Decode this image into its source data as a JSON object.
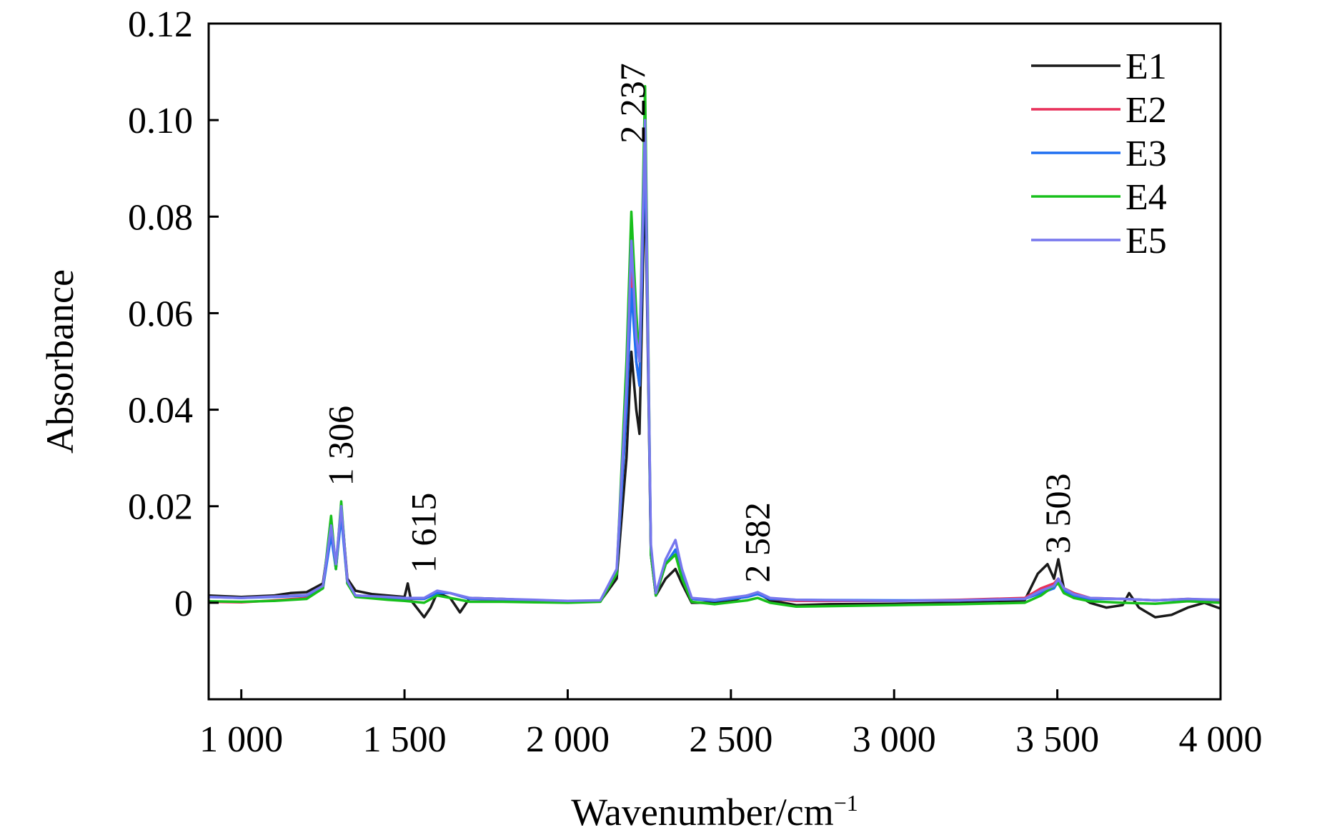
{
  "chart_data": {
    "type": "line",
    "xlabel": "Wavenumber/cm",
    "xlabel_sup": "−1",
    "ylabel": "Absorbance",
    "xlim": [
      900,
      4000
    ],
    "ylim": [
      -0.02,
      0.12
    ],
    "x_ticks": [
      1000,
      1500,
      2000,
      2500,
      3000,
      3500,
      4000
    ],
    "x_tick_labels": [
      "1 000",
      "1 500",
      "2 000",
      "2 500",
      "3 000",
      "3 500",
      "4 000"
    ],
    "y_ticks": [
      0,
      0.02,
      0.04,
      0.06,
      0.08,
      0.1,
      0.12
    ],
    "y_tick_labels": [
      "0",
      "0.02",
      "0.04",
      "0.06",
      "0.08",
      "0.10",
      "0.12"
    ],
    "grid": false,
    "legend_position": "top-right",
    "annotations": [
      {
        "text": "1 306",
        "x": 1306,
        "y": 0.023
      },
      {
        "text": "1 615",
        "x": 1560,
        "y": 0.005
      },
      {
        "text": "2 237",
        "x": 2200,
        "y": 0.094
      },
      {
        "text": "2 582",
        "x": 2582,
        "y": 0.003
      },
      {
        "text": "3 503",
        "x": 3503,
        "y": 0.009
      }
    ],
    "series": [
      {
        "name": "E1",
        "color": "#1a1a1a",
        "points": [
          [
            900,
            0.0015
          ],
          [
            1000,
            0.0012
          ],
          [
            1100,
            0.0015
          ],
          [
            1150,
            0.002
          ],
          [
            1200,
            0.0022
          ],
          [
            1250,
            0.004
          ],
          [
            1275,
            0.016
          ],
          [
            1290,
            0.007
          ],
          [
            1306,
            0.02
          ],
          [
            1325,
            0.005
          ],
          [
            1350,
            0.0025
          ],
          [
            1400,
            0.0018
          ],
          [
            1450,
            0.0015
          ],
          [
            1500,
            0.0012
          ],
          [
            1510,
            0.004
          ],
          [
            1520,
            0.0005
          ],
          [
            1560,
            -0.003
          ],
          [
            1580,
            -0.001
          ],
          [
            1600,
            0.002
          ],
          [
            1640,
            0.001
          ],
          [
            1670,
            -0.002
          ],
          [
            1700,
            0.001
          ],
          [
            1800,
            0.0008
          ],
          [
            1900,
            0.0005
          ],
          [
            2000,
            0.0002
          ],
          [
            2100,
            0.0003
          ],
          [
            2150,
            0.005
          ],
          [
            2180,
            0.03
          ],
          [
            2195,
            0.052
          ],
          [
            2210,
            0.04
          ],
          [
            2220,
            0.035
          ],
          [
            2237,
            0.09
          ],
          [
            2255,
            0.01
          ],
          [
            2270,
            0.0015
          ],
          [
            2300,
            0.005
          ],
          [
            2330,
            0.007
          ],
          [
            2350,
            0.004
          ],
          [
            2380,
            0.0
          ],
          [
            2450,
            0.0
          ],
          [
            2500,
            0.0003
          ],
          [
            2550,
            0.0015
          ],
          [
            2582,
            0.002
          ],
          [
            2620,
            0.0005
          ],
          [
            2700,
            -0.0005
          ],
          [
            2800,
            -0.0003
          ],
          [
            3000,
            -0.0002
          ],
          [
            3200,
            0.0
          ],
          [
            3400,
            0.0005
          ],
          [
            3440,
            0.006
          ],
          [
            3470,
            0.008
          ],
          [
            3490,
            0.005
          ],
          [
            3503,
            0.009
          ],
          [
            3520,
            0.003
          ],
          [
            3550,
            0.002
          ],
          [
            3600,
            0.0
          ],
          [
            3650,
            -0.001
          ],
          [
            3700,
            -0.0005
          ],
          [
            3720,
            0.002
          ],
          [
            3750,
            -0.001
          ],
          [
            3800,
            -0.003
          ],
          [
            3850,
            -0.0025
          ],
          [
            3900,
            -0.001
          ],
          [
            3950,
            0.0
          ],
          [
            4000,
            -0.0012
          ]
        ]
      },
      {
        "name": "E2",
        "color": "#e8305a",
        "points": [
          [
            900,
            0.0002
          ],
          [
            1000,
            0.0001
          ],
          [
            1100,
            0.0005
          ],
          [
            1200,
            0.001
          ],
          [
            1250,
            0.003
          ],
          [
            1275,
            0.015
          ],
          [
            1290,
            0.007
          ],
          [
            1306,
            0.019
          ],
          [
            1325,
            0.004
          ],
          [
            1350,
            0.0015
          ],
          [
            1450,
            0.001
          ],
          [
            1500,
            0.0008
          ],
          [
            1560,
            0.0008
          ],
          [
            1600,
            0.002
          ],
          [
            1640,
            0.002
          ],
          [
            1700,
            0.0008
          ],
          [
            1800,
            0.0005
          ],
          [
            1900,
            0.0004
          ],
          [
            2000,
            0.0002
          ],
          [
            2100,
            0.0003
          ],
          [
            2150,
            0.006
          ],
          [
            2180,
            0.04
          ],
          [
            2195,
            0.07
          ],
          [
            2210,
            0.05
          ],
          [
            2220,
            0.045
          ],
          [
            2237,
            0.098
          ],
          [
            2255,
            0.01
          ],
          [
            2270,
            0.0015
          ],
          [
            2300,
            0.008
          ],
          [
            2330,
            0.01
          ],
          [
            2350,
            0.006
          ],
          [
            2380,
            0.0008
          ],
          [
            2450,
            0.0004
          ],
          [
            2550,
            0.0012
          ],
          [
            2582,
            0.0018
          ],
          [
            2620,
            0.0008
          ],
          [
            2700,
            0.0004
          ],
          [
            3000,
            0.0004
          ],
          [
            3200,
            0.0006
          ],
          [
            3400,
            0.001
          ],
          [
            3450,
            0.003
          ],
          [
            3490,
            0.004
          ],
          [
            3503,
            0.005
          ],
          [
            3520,
            0.003
          ],
          [
            3550,
            0.002
          ],
          [
            3600,
            0.001
          ],
          [
            3700,
            0.0008
          ],
          [
            3800,
            0.0005
          ],
          [
            3900,
            0.0008
          ],
          [
            4000,
            0.0005
          ]
        ]
      },
      {
        "name": "E3",
        "color": "#1f6ff0",
        "points": [
          [
            900,
            0.0012
          ],
          [
            1000,
            0.001
          ],
          [
            1100,
            0.0012
          ],
          [
            1200,
            0.0015
          ],
          [
            1250,
            0.003
          ],
          [
            1275,
            0.014
          ],
          [
            1290,
            0.007
          ],
          [
            1306,
            0.018
          ],
          [
            1325,
            0.004
          ],
          [
            1350,
            0.0015
          ],
          [
            1450,
            0.001
          ],
          [
            1500,
            0.0009
          ],
          [
            1560,
            0.0008
          ],
          [
            1600,
            0.002
          ],
          [
            1640,
            0.002
          ],
          [
            1700,
            0.0008
          ],
          [
            1800,
            0.0007
          ],
          [
            1900,
            0.0005
          ],
          [
            2000,
            0.0003
          ],
          [
            2100,
            0.0004
          ],
          [
            2150,
            0.006
          ],
          [
            2180,
            0.04
          ],
          [
            2195,
            0.065
          ],
          [
            2210,
            0.05
          ],
          [
            2220,
            0.045
          ],
          [
            2237,
            0.096
          ],
          [
            2255,
            0.01
          ],
          [
            2270,
            0.0015
          ],
          [
            2300,
            0.008
          ],
          [
            2330,
            0.011
          ],
          [
            2350,
            0.006
          ],
          [
            2380,
            0.0008
          ],
          [
            2450,
            0.0004
          ],
          [
            2550,
            0.0012
          ],
          [
            2582,
            0.0018
          ],
          [
            2620,
            0.0008
          ],
          [
            2700,
            0.0006
          ],
          [
            3000,
            0.0005
          ],
          [
            3200,
            0.0005
          ],
          [
            3400,
            0.0008
          ],
          [
            3450,
            0.002
          ],
          [
            3490,
            0.003
          ],
          [
            3503,
            0.0045
          ],
          [
            3520,
            0.0025
          ],
          [
            3550,
            0.0015
          ],
          [
            3600,
            0.0008
          ],
          [
            3700,
            0.0008
          ],
          [
            3800,
            0.0005
          ],
          [
            3900,
            0.0007
          ],
          [
            4000,
            0.0006
          ]
        ]
      },
      {
        "name": "E4",
        "color": "#18c01c",
        "points": [
          [
            900,
            0.0003
          ],
          [
            1000,
            0.0002
          ],
          [
            1100,
            0.0004
          ],
          [
            1200,
            0.0008
          ],
          [
            1250,
            0.003
          ],
          [
            1275,
            0.018
          ],
          [
            1290,
            0.007
          ],
          [
            1306,
            0.021
          ],
          [
            1325,
            0.004
          ],
          [
            1350,
            0.0012
          ],
          [
            1450,
            0.0006
          ],
          [
            1500,
            0.0004
          ],
          [
            1560,
            0.0
          ],
          [
            1600,
            0.0015
          ],
          [
            1640,
            0.001
          ],
          [
            1700,
            0.0002
          ],
          [
            1800,
            0.0002
          ],
          [
            1900,
            0.0001
          ],
          [
            2000,
            0.0
          ],
          [
            2100,
            0.0002
          ],
          [
            2150,
            0.006
          ],
          [
            2180,
            0.05
          ],
          [
            2195,
            0.081
          ],
          [
            2210,
            0.06
          ],
          [
            2220,
            0.05
          ],
          [
            2237,
            0.107
          ],
          [
            2255,
            0.01
          ],
          [
            2270,
            0.0015
          ],
          [
            2300,
            0.008
          ],
          [
            2330,
            0.01
          ],
          [
            2350,
            0.005
          ],
          [
            2380,
            0.0002
          ],
          [
            2450,
            -0.0003
          ],
          [
            2550,
            0.0005
          ],
          [
            2582,
            0.001
          ],
          [
            2620,
            0.0
          ],
          [
            2700,
            -0.0008
          ],
          [
            3000,
            -0.0005
          ],
          [
            3200,
            -0.0003
          ],
          [
            3400,
            0.0
          ],
          [
            3450,
            0.0015
          ],
          [
            3490,
            0.0035
          ],
          [
            3503,
            0.004
          ],
          [
            3520,
            0.002
          ],
          [
            3550,
            0.001
          ],
          [
            3600,
            0.0003
          ],
          [
            3700,
            0.0
          ],
          [
            3800,
            -0.0002
          ],
          [
            3900,
            0.0003
          ],
          [
            4000,
            0.0
          ]
        ]
      },
      {
        "name": "E5",
        "color": "#7777ee",
        "points": [
          [
            900,
            0.0012
          ],
          [
            1000,
            0.001
          ],
          [
            1100,
            0.0013
          ],
          [
            1200,
            0.0016
          ],
          [
            1250,
            0.0035
          ],
          [
            1275,
            0.016
          ],
          [
            1290,
            0.008
          ],
          [
            1306,
            0.02
          ],
          [
            1325,
            0.0045
          ],
          [
            1350,
            0.0015
          ],
          [
            1450,
            0.0012
          ],
          [
            1500,
            0.001
          ],
          [
            1560,
            0.001
          ],
          [
            1600,
            0.0025
          ],
          [
            1640,
            0.002
          ],
          [
            1700,
            0.001
          ],
          [
            1800,
            0.0008
          ],
          [
            1900,
            0.0006
          ],
          [
            2000,
            0.0004
          ],
          [
            2100,
            0.0005
          ],
          [
            2150,
            0.007
          ],
          [
            2180,
            0.045
          ],
          [
            2195,
            0.075
          ],
          [
            2210,
            0.055
          ],
          [
            2220,
            0.05
          ],
          [
            2237,
            0.1
          ],
          [
            2255,
            0.012
          ],
          [
            2270,
            0.002
          ],
          [
            2300,
            0.009
          ],
          [
            2330,
            0.013
          ],
          [
            2350,
            0.007
          ],
          [
            2380,
            0.001
          ],
          [
            2450,
            0.0006
          ],
          [
            2550,
            0.0015
          ],
          [
            2582,
            0.0022
          ],
          [
            2620,
            0.001
          ],
          [
            2700,
            0.0006
          ],
          [
            3000,
            0.0004
          ],
          [
            3200,
            0.0005
          ],
          [
            3400,
            0.0008
          ],
          [
            3450,
            0.0025
          ],
          [
            3490,
            0.0035
          ],
          [
            3503,
            0.005
          ],
          [
            3520,
            0.003
          ],
          [
            3550,
            0.0018
          ],
          [
            3600,
            0.001
          ],
          [
            3700,
            0.0008
          ],
          [
            3800,
            0.0005
          ],
          [
            3900,
            0.0008
          ],
          [
            4000,
            0.0006
          ]
        ]
      }
    ]
  }
}
